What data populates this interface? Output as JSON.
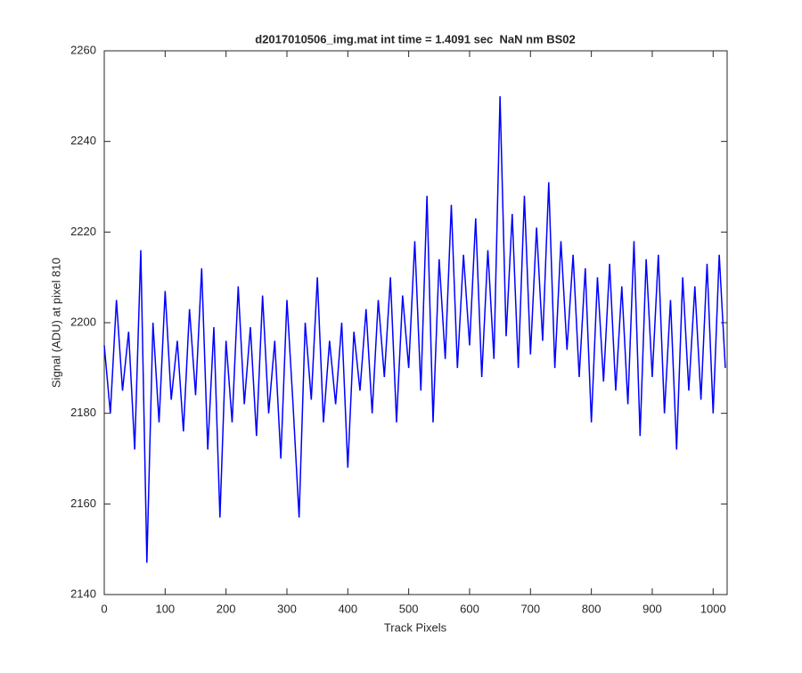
{
  "chart_data": {
    "type": "line",
    "title": "d2017010506_img.mat int time = 1.4091 sec  NaN nm BS02",
    "xlabel": "Track Pixels",
    "ylabel": "Signal (ADU) at pixel 810",
    "x": [
      0,
      10,
      20,
      30,
      40,
      50,
      60,
      70,
      80,
      90,
      100,
      110,
      120,
      130,
      140,
      150,
      160,
      170,
      180,
      190,
      200,
      210,
      220,
      230,
      240,
      250,
      260,
      270,
      280,
      290,
      300,
      310,
      320,
      330,
      340,
      350,
      360,
      370,
      380,
      390,
      400,
      410,
      420,
      430,
      440,
      450,
      460,
      470,
      480,
      490,
      500,
      510,
      520,
      530,
      540,
      550,
      560,
      570,
      580,
      590,
      600,
      610,
      620,
      630,
      640,
      650,
      660,
      670,
      680,
      690,
      700,
      710,
      720,
      730,
      740,
      750,
      760,
      770,
      780,
      790,
      800,
      810,
      820,
      830,
      840,
      850,
      860,
      870,
      880,
      890,
      900,
      910,
      920,
      930,
      940,
      950,
      960,
      970,
      980,
      990,
      1000,
      1010,
      1020
    ],
    "series": [
      {
        "name": "signal",
        "color": "#0000ff",
        "values": [
          2195,
          2180,
          2205,
          2185,
          2198,
          2172,
          2216,
          2147,
          2200,
          2178,
          2207,
          2183,
          2196,
          2176,
          2203,
          2184,
          2212,
          2172,
          2199,
          2157,
          2196,
          2178,
          2208,
          2182,
          2199,
          2175,
          2206,
          2180,
          2196,
          2170,
          2205,
          2182,
          2157,
          2200,
          2183,
          2210,
          2178,
          2196,
          2182,
          2200,
          2168,
          2198,
          2185,
          2203,
          2180,
          2205,
          2188,
          2210,
          2178,
          2206,
          2190,
          2218,
          2185,
          2228,
          2178,
          2214,
          2192,
          2226,
          2190,
          2215,
          2195,
          2223,
          2188,
          2216,
          2192,
          2250,
          2197,
          2224,
          2190,
          2228,
          2193,
          2221,
          2196,
          2231,
          2190,
          2218,
          2194,
          2215,
          2188,
          2212,
          2178,
          2210,
          2187,
          2213,
          2185,
          2208,
          2182,
          2218,
          2175,
          2214,
          2188,
          2215,
          2180,
          2205,
          2172,
          2210,
          2185,
          2208,
          2183,
          2213,
          2180,
          2215,
          2190
        ]
      }
    ],
    "xlim": [
      0,
      1023
    ],
    "ylim": [
      2140,
      2260
    ],
    "xticks": [
      0,
      100,
      200,
      300,
      400,
      500,
      600,
      700,
      800,
      900,
      1000
    ],
    "yticks": [
      2140,
      2160,
      2180,
      2200,
      2220,
      2240,
      2260
    ]
  }
}
